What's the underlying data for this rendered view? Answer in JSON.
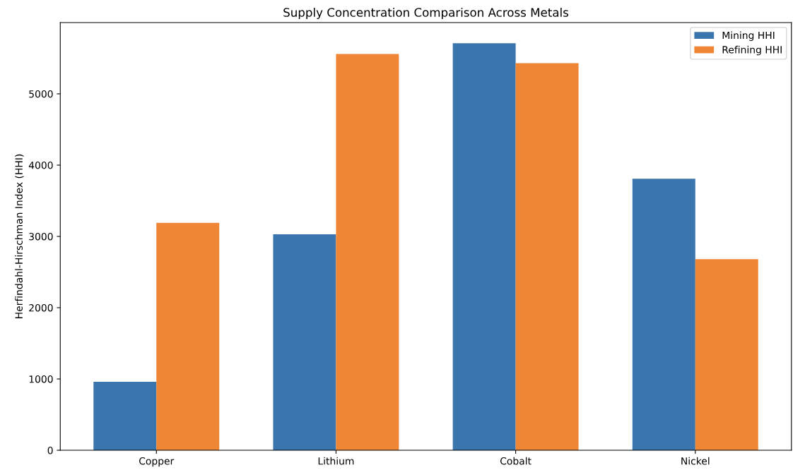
{
  "chart_data": {
    "type": "bar",
    "title": "Supply Concentration Comparison Across Metals",
    "ylabel": "Herfindahl-Hirschman Index (HHI)",
    "categories": [
      "Copper",
      "Lithium",
      "Cobalt",
      "Nickel"
    ],
    "series": [
      {
        "name": "Mining HHI",
        "color": "#3a75ad",
        "values": [
          960,
          3030,
          5710,
          3810
        ]
      },
      {
        "name": "Refining HHI",
        "color": "#ef8636",
        "values": [
          3190,
          5560,
          5430,
          2680
        ]
      }
    ],
    "ylim": [
      0,
      6000
    ],
    "yticks": [
      0,
      1000,
      2000,
      3000,
      4000,
      5000
    ],
    "legend": "top right",
    "grid": false
  }
}
